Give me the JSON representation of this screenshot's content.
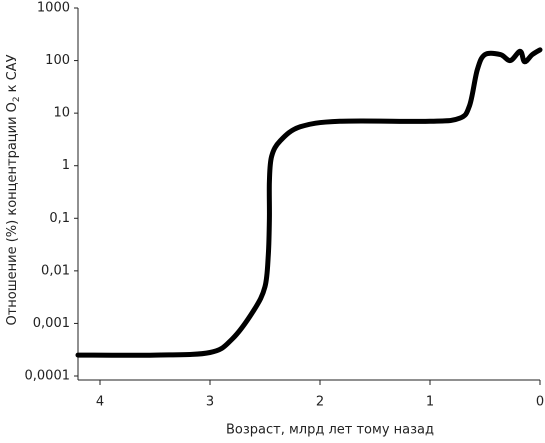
{
  "chart_data": {
    "type": "line",
    "xlabel": "Возраст, млрд лет тому назад",
    "ylabel": [
      "Отношение (%) концентрации O",
      "2",
      "к САУ"
    ],
    "x": [
      4.2,
      3.5,
      3.0,
      2.8,
      2.6,
      2.5,
      2.47,
      2.46,
      2.46,
      2.44,
      2.36,
      2.18,
      1.82,
      1.0,
      0.73,
      0.64,
      0.57,
      0.5,
      0.36,
      0.27,
      0.18,
      0.14,
      0.07,
      0.0
    ],
    "series": [
      {
        "name": "O2",
        "color": "#000000",
        "values": [
          0.00025,
          0.00025,
          0.00028,
          0.0005,
          0.0018,
          0.005,
          0.02,
          0.1,
          0.5,
          1.5,
          3,
          5.5,
          7,
          7,
          8,
          14,
          67,
          130,
          130,
          100,
          150,
          95,
          130,
          160
        ]
      }
    ],
    "xlim": [
      4.2,
      0
    ],
    "xticks": [
      4,
      3,
      2,
      1,
      0
    ],
    "ylim": [
      0.0001,
      1000
    ],
    "log_y": true,
    "yticks": [
      {
        "value": 0.0001,
        "label": "0,0001"
      },
      {
        "value": 0.001,
        "label": "0,001"
      },
      {
        "value": 0.01,
        "label": "0,01"
      },
      {
        "value": 0.1,
        "label": "0,1"
      },
      1,
      10,
      100,
      1000
    ]
  }
}
